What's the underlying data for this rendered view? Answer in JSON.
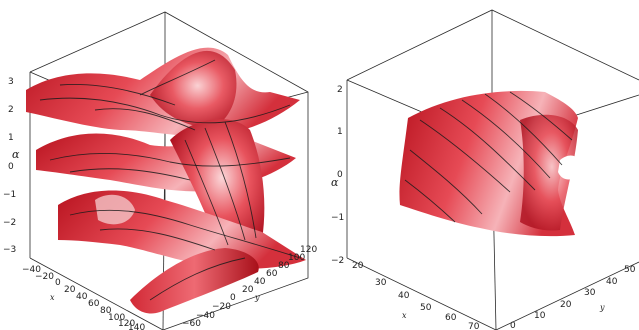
{
  "panels": [
    {
      "z_label": "α",
      "x_label": "x",
      "y_label": "y",
      "z_ticks": [
        "3",
        "2",
        "1",
        "0",
        "−1",
        "−2",
        "−3"
      ],
      "x_ticks": [
        "−40",
        "−20",
        "0",
        "20",
        "40",
        "60",
        "80",
        "100",
        "120",
        "140"
      ],
      "y_ticks": [
        "−60",
        "−40",
        "−20",
        "0",
        "20",
        "40",
        "60",
        "80",
        "100",
        "120"
      ],
      "surface_color": "#e0404a"
    },
    {
      "z_label": "α",
      "x_label": "x",
      "y_label": "y",
      "z_ticks": [
        "2",
        "1",
        "0",
        "−1",
        "−2"
      ],
      "x_ticks": [
        "20",
        "30",
        "40",
        "50",
        "60",
        "70"
      ],
      "y_ticks": [
        "0",
        "10",
        "20",
        "30",
        "40",
        "50"
      ],
      "surface_color": "#e0404a"
    }
  ]
}
